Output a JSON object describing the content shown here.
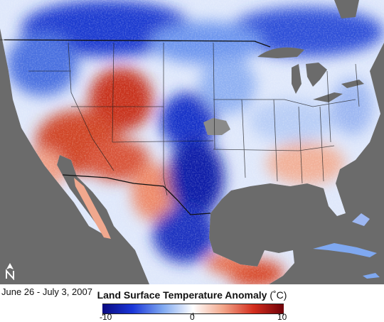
{
  "date_range": "June 26 - July 3, 2007",
  "legend": {
    "title": "Land Surface Temperature Anomaly",
    "unit": "(˚C)",
    "min_label": "-10",
    "mid_label": "0",
    "max_label": "10",
    "scale": {
      "min": -10,
      "max": 10
    },
    "colors": [
      "#0a0a80",
      "#1a36d8",
      "#7fa8f0",
      "#ffffff",
      "#f2a68a",
      "#d42e1e",
      "#6e0008"
    ]
  },
  "north_arrow": "N",
  "map_colors": {
    "ocean": "#6b6b6b",
    "lakes": "#6b6b6b",
    "borders": "#222222",
    "no_data": "#8a8a8a"
  }
}
